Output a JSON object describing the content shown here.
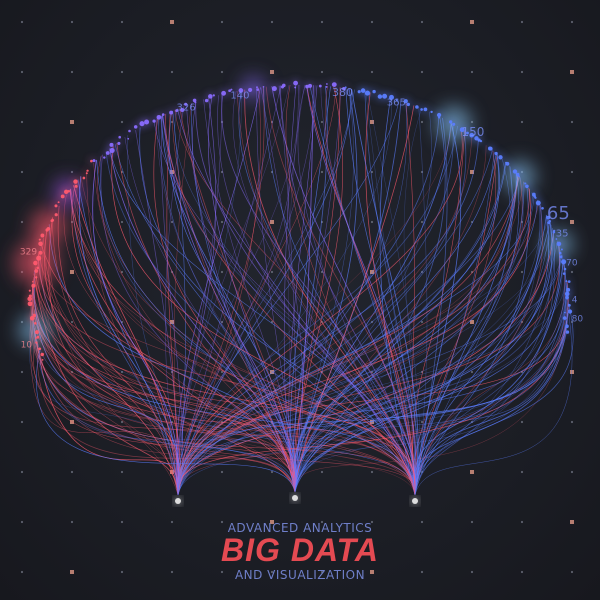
{
  "caption": {
    "line1": "ADVANCED ANALYTICS",
    "title": "BIG DATA",
    "line3": "AND VISUALIZATION"
  },
  "ring_labels": [
    "326",
    "140",
    "380",
    "365",
    "150",
    "329",
    "65",
    "35",
    "70",
    "4",
    "80",
    "10"
  ],
  "colors": {
    "background": "#1b1d24",
    "title": "#e44a52",
    "subtitle": "#6f7fc9",
    "warm": "#ff5a6e",
    "cool": "#5b7dff",
    "glow_blue": "#8fd0ff",
    "grid_dot": "#7a7f8f",
    "grid_marker": "#c98a7a"
  }
}
